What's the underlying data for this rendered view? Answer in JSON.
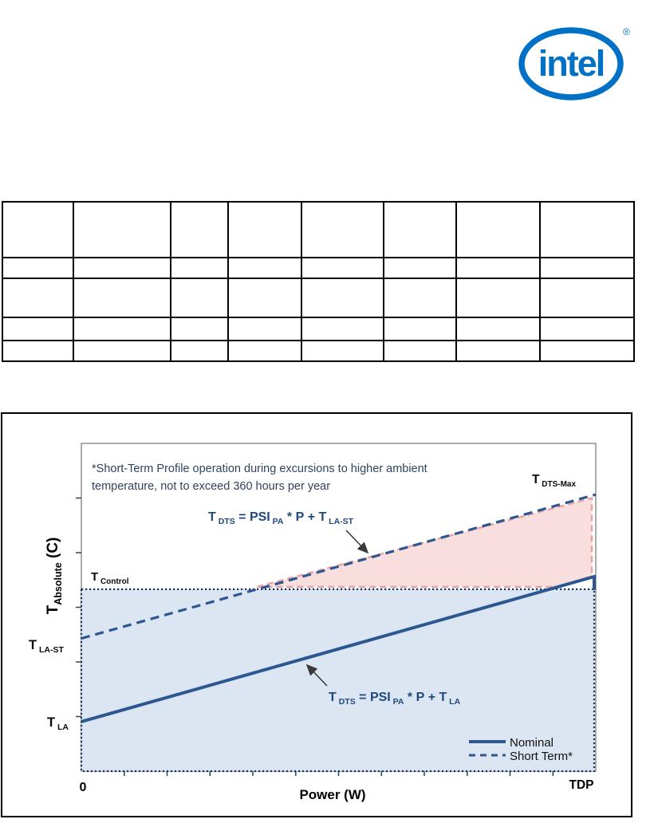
{
  "logo": {
    "text": "intel",
    "reg": "®"
  },
  "table": {
    "rows": 5,
    "cols": 8
  },
  "figure": {
    "note_line1": "*Short-Term Profile operation during excursions to higher ambient",
    "note_line2": "temperature, not to exceed 360 hours per year",
    "formula_short_term": {
      "seg1": "T",
      "sub1": " DTS",
      "seg2": " = PSI",
      "sub2": " PA",
      "seg3": " * P + T",
      "sub3": " LA-ST"
    },
    "formula_nominal": {
      "seg1": "T",
      "sub1": " DTS",
      "seg2": " = PSI",
      "sub2": " PA",
      "seg3": " * P + T",
      "sub3": " LA"
    },
    "labels": {
      "t_control": {
        "base": "T",
        "sub": " Control"
      },
      "t_dts_max": {
        "base": "T",
        "sub": " DTS-Max"
      },
      "t_la_st": {
        "base": "T",
        "sub": " LA-ST"
      },
      "t_la": {
        "base": "T",
        "sub": " LA"
      }
    },
    "axes": {
      "y_base": "T",
      "y_sub": "Absolute",
      "y_rest": " (C)",
      "x_label": "Power (W)",
      "x_min": "0",
      "x_max": "TDP"
    },
    "legend": {
      "nominal": "Nominal",
      "short_term": "Short Term*"
    }
  },
  "colors": {
    "intel_blue": "#0071C5",
    "line_navy": "#2C5791",
    "dotted_navy": "#17375E",
    "formula_navy": "#1F497D",
    "note_navy": "#31435E",
    "blue_fill": "#DCE6F2",
    "pink_fill": "#F8DEDD",
    "pink_border": "#E9A2A2",
    "plot_border": "#7F7F7F"
  },
  "chart_data": {
    "type": "line",
    "title": "",
    "xlabel": "Power (W)",
    "ylabel": "T_Absolute (C)",
    "x_tick_labels": [
      "0",
      "TDP"
    ],
    "y_tick_labels": [],
    "grid": false,
    "legend_position": "bottom-right",
    "series": [
      {
        "name": "Nominal",
        "line_style": "solid",
        "x_norm": [
          0,
          1
        ],
        "y_norm": [
          0.151,
          0.595
        ]
      },
      {
        "name": "Short Term*",
        "line_style": "dashed",
        "x_norm": [
          0,
          1
        ],
        "y_norm": [
          0.405,
          0.844
        ]
      }
    ],
    "reference_levels_norm": {
      "T_Control": 0.555,
      "T_LA": 0.151,
      "T_LA-ST": 0.405,
      "T_DTS-Max": 0.844
    },
    "regions": [
      {
        "name": "nominal operating envelope",
        "fill": "#DCE6F2",
        "desc": "dotted rectangle below T_Control across full power range 0..TDP"
      },
      {
        "name": "short-term excursion envelope",
        "fill": "#F8DEDD",
        "desc": "between T_Control level and Short Term dashed line, up to TDP"
      }
    ]
  }
}
